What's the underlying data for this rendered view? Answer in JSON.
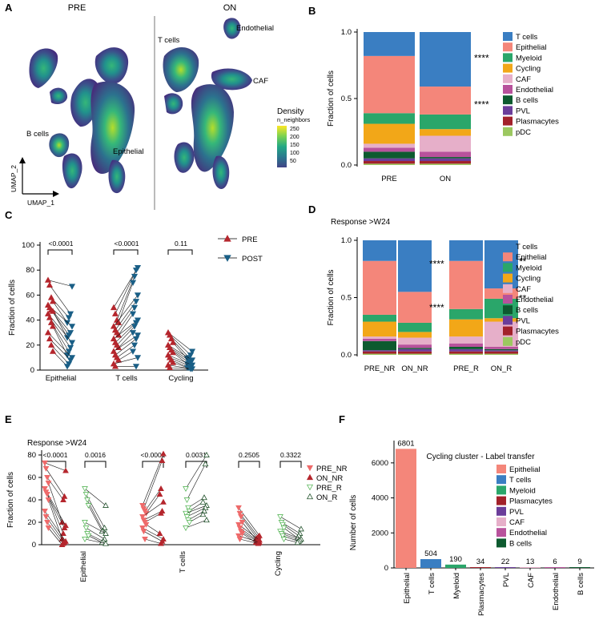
{
  "panels": {
    "A": {
      "label": "A",
      "titles": [
        "PRE",
        "ON"
      ],
      "cluster_labels": [
        "T cells",
        "Endothelial",
        "CAF",
        "B cells",
        "Epithelial"
      ],
      "axis_x": "UMAP_1",
      "axis_y": "UMAP_2",
      "legend_title": "Density",
      "legend_subtitle": "n_neighbors",
      "legend_ticks": [
        "250",
        "200",
        "150",
        "100",
        "50"
      ],
      "density_colors": [
        "#fde725",
        "#7ad151",
        "#22a884",
        "#2a788e",
        "#414487",
        "#440154"
      ]
    },
    "B": {
      "label": "B"
    },
    "C": {
      "label": "C"
    },
    "D": {
      "label": "D",
      "subtitle": "Response >W24"
    },
    "E": {
      "label": "E",
      "subtitle": "Response >W24"
    },
    "F": {
      "label": "F"
    }
  },
  "cell_colors": {
    "T cells": "#3a7ec2",
    "Epithelial": "#f4867a",
    "Myeloid": "#2aa66a",
    "Cycling": "#f2a718",
    "CAF": "#e6afc9",
    "Endothelial": "#b8529c",
    "B cells": "#0d5a2f",
    "PVL": "#6b3d9a",
    "Plasmacytes": "#a2212a",
    "pDC": "#9cc860"
  },
  "chart_data": [
    {
      "id": "B",
      "type": "bar",
      "stacked": true,
      "categories": [
        "PRE",
        "ON"
      ],
      "ylabel": "Fraction of cells",
      "ylim": [
        0,
        1
      ],
      "yticks": [
        "0.0",
        "0.5",
        "1.0"
      ],
      "series": [
        {
          "name": "pDC",
          "values": [
            0.01,
            0.01
          ]
        },
        {
          "name": "Plasmacytes",
          "values": [
            0.02,
            0.02
          ]
        },
        {
          "name": "PVL",
          "values": [
            0.02,
            0.02
          ]
        },
        {
          "name": "B cells",
          "values": [
            0.05,
            0.01
          ]
        },
        {
          "name": "Endothelial",
          "values": [
            0.03,
            0.04
          ]
        },
        {
          "name": "CAF",
          "values": [
            0.03,
            0.12
          ]
        },
        {
          "name": "Cycling",
          "values": [
            0.15,
            0.05
          ]
        },
        {
          "name": "Myeloid",
          "values": [
            0.08,
            0.11
          ]
        },
        {
          "name": "Epithelial",
          "values": [
            0.43,
            0.21
          ]
        },
        {
          "name": "T cells",
          "values": [
            0.18,
            0.41
          ]
        }
      ],
      "legend_order": [
        "T cells",
        "Epithelial",
        "Myeloid",
        "Cycling",
        "CAF",
        "Endothelial",
        "B cells",
        "PVL",
        "Plasmacytes",
        "pDC"
      ],
      "annotations": [
        {
          "text": "****",
          "y": 0.81
        },
        {
          "text": "****",
          "y": 0.46
        }
      ]
    },
    {
      "id": "C",
      "type": "scatter",
      "paired": true,
      "categories": [
        "Epithelial",
        "T cells",
        "Cycling"
      ],
      "ylabel": "Fraction of cells",
      "ylim": [
        0,
        100
      ],
      "yticks": [
        "0",
        "20",
        "40",
        "60",
        "80",
        "100"
      ],
      "series_names": [
        "PRE",
        "POST"
      ],
      "series_colors": [
        "#b5262d",
        "#1a5f86"
      ],
      "pvalues": [
        "<0.0001",
        "<0.0001",
        "0.11"
      ],
      "pairs": [
        [
          [
            72,
            67
          ],
          [
            68,
            45
          ],
          [
            58,
            42
          ],
          [
            55,
            38
          ],
          [
            52,
            35
          ],
          [
            50,
            30
          ],
          [
            48,
            28
          ],
          [
            47,
            26
          ],
          [
            45,
            22
          ],
          [
            42,
            18
          ],
          [
            38,
            15
          ],
          [
            35,
            12
          ],
          [
            30,
            10
          ],
          [
            25,
            8
          ],
          [
            20,
            5
          ],
          [
            15,
            3
          ]
        ],
        [
          [
            50,
            82
          ],
          [
            45,
            80
          ],
          [
            40,
            75
          ],
          [
            38,
            70
          ],
          [
            35,
            60
          ],
          [
            32,
            55
          ],
          [
            30,
            50
          ],
          [
            28,
            45
          ],
          [
            25,
            40
          ],
          [
            22,
            38
          ],
          [
            20,
            35
          ],
          [
            18,
            30
          ],
          [
            15,
            28
          ],
          [
            12,
            25
          ],
          [
            10,
            20
          ],
          [
            8,
            15
          ],
          [
            5,
            10
          ],
          [
            3,
            3
          ]
        ],
        [
          [
            30,
            15
          ],
          [
            28,
            12
          ],
          [
            25,
            10
          ],
          [
            22,
            9
          ],
          [
            20,
            8
          ],
          [
            18,
            7
          ],
          [
            16,
            6
          ],
          [
            14,
            5
          ],
          [
            12,
            4
          ],
          [
            10,
            3
          ],
          [
            8,
            2
          ],
          [
            6,
            2
          ],
          [
            4,
            1
          ],
          [
            2,
            1
          ]
        ]
      ]
    },
    {
      "id": "D",
      "type": "bar",
      "stacked": true,
      "categories": [
        "PRE_NR",
        "ON_NR",
        "PRE_R",
        "ON_R"
      ],
      "ylabel": "Fraction of cells",
      "ylim": [
        0,
        1
      ],
      "yticks": [
        "0.0",
        "0.5",
        "1.0"
      ],
      "series": [
        {
          "name": "pDC",
          "values": [
            0.01,
            0.01,
            0.01,
            0.01
          ]
        },
        {
          "name": "Plasmacytes",
          "values": [
            0.02,
            0.02,
            0.02,
            0.02
          ]
        },
        {
          "name": "PVL",
          "values": [
            0.01,
            0.02,
            0.02,
            0.01
          ]
        },
        {
          "name": "B cells",
          "values": [
            0.08,
            0.01,
            0.02,
            0.01
          ]
        },
        {
          "name": "Endothelial",
          "values": [
            0.02,
            0.03,
            0.03,
            0.02
          ]
        },
        {
          "name": "CAF",
          "values": [
            0.02,
            0.06,
            0.06,
            0.22
          ]
        },
        {
          "name": "Cycling",
          "values": [
            0.13,
            0.05,
            0.15,
            0.03
          ]
        },
        {
          "name": "Myeloid",
          "values": [
            0.06,
            0.08,
            0.09,
            0.17
          ]
        },
        {
          "name": "Epithelial",
          "values": [
            0.47,
            0.27,
            0.42,
            0.09
          ]
        },
        {
          "name": "T cells",
          "values": [
            0.18,
            0.45,
            0.18,
            0.42
          ]
        }
      ],
      "legend_order": [
        "T cells",
        "Epithelial",
        "Myeloid",
        "Cycling",
        "CAF",
        "Endothelial",
        "B cells",
        "PVL",
        "Plasmacytes",
        "pDC"
      ],
      "annotations": [
        {
          "text": "****",
          "bar": 1,
          "y": 0.8
        },
        {
          "text": "****",
          "bar": 1,
          "y": 0.42
        },
        {
          "text": "**",
          "bar": 3,
          "y": 0.82
        },
        {
          "text": "**",
          "bar": 3,
          "y": 0.5
        }
      ]
    },
    {
      "id": "E",
      "type": "scatter",
      "paired": true,
      "categories": [
        "Epithelial",
        "T cells",
        "Cycling"
      ],
      "ylabel": "Fraction of cells",
      "ylim": [
        0,
        80
      ],
      "yticks": [
        "0",
        "20",
        "40",
        "60",
        "80"
      ],
      "series_names": [
        "PRE_NR",
        "ON_NR",
        "PRE_R",
        "ON_R"
      ],
      "series_colors": [
        "#ee6a6a",
        "#b5262d",
        "#5cb85c",
        "#24542e"
      ],
      "pvalues": [
        "<0.0001",
        "0.0016",
        "<0.0001",
        "0.0031",
        "0.2505",
        "0.3322"
      ],
      "pairs_nr": [
        [
          [
            73,
            66
          ],
          [
            68,
            43
          ],
          [
            60,
            40
          ],
          [
            55,
            20
          ],
          [
            50,
            17
          ],
          [
            47,
            15
          ],
          [
            45,
            10
          ],
          [
            40,
            5
          ],
          [
            30,
            3
          ],
          [
            25,
            2
          ],
          [
            20,
            1
          ],
          [
            15,
            0
          ]
        ],
        [
          [
            35,
            81
          ],
          [
            32,
            75
          ],
          [
            30,
            50
          ],
          [
            28,
            45
          ],
          [
            25,
            38
          ],
          [
            22,
            30
          ],
          [
            20,
            28
          ],
          [
            18,
            10
          ],
          [
            15,
            5
          ],
          [
            12,
            3
          ],
          [
            5,
            1
          ]
        ],
        [
          [
            33,
            8
          ],
          [
            28,
            7
          ],
          [
            25,
            6
          ],
          [
            20,
            5
          ],
          [
            18,
            4
          ],
          [
            15,
            3
          ],
          [
            12,
            3
          ],
          [
            10,
            2
          ],
          [
            8,
            2
          ],
          [
            5,
            1
          ]
        ]
      ],
      "pairs_r": [
        [
          [
            50,
            35
          ],
          [
            45,
            15
          ],
          [
            40,
            12
          ],
          [
            35,
            12
          ],
          [
            20,
            10
          ],
          [
            15,
            5
          ],
          [
            10,
            3
          ],
          [
            8,
            2
          ],
          [
            5,
            1
          ]
        ],
        [
          [
            50,
            80
          ],
          [
            40,
            72
          ],
          [
            33,
            42
          ],
          [
            30,
            38
          ],
          [
            28,
            35
          ],
          [
            25,
            33
          ],
          [
            22,
            30
          ],
          [
            20,
            27
          ],
          [
            15,
            22
          ]
        ],
        [
          [
            25,
            14
          ],
          [
            20,
            10
          ],
          [
            18,
            8
          ],
          [
            15,
            6
          ],
          [
            12,
            5
          ],
          [
            10,
            4
          ],
          [
            8,
            3
          ],
          [
            5,
            2
          ]
        ]
      ]
    },
    {
      "id": "F",
      "type": "bar",
      "title": "Cycling cluster - Label transfer",
      "categories": [
        "Epithelial",
        "T cells",
        "Myeloid",
        "Plasmacytes",
        "PVL",
        "CAF",
        "Endothelial",
        "B cells"
      ],
      "values": [
        6801,
        504,
        190,
        34,
        22,
        13,
        6,
        9
      ],
      "value_labels": [
        "6801",
        "504",
        "190",
        "34",
        "22",
        "13",
        "6",
        "9"
      ],
      "ylabel": "Number of cells",
      "ylim": [
        0,
        7000
      ],
      "yticks": [
        "0",
        "2000",
        "4000",
        "6000"
      ],
      "legend_order": [
        "Epithelial",
        "T cells",
        "Myeloid",
        "Plasmacytes",
        "PVL",
        "CAF",
        "Endothelial",
        "B cells"
      ]
    }
  ]
}
